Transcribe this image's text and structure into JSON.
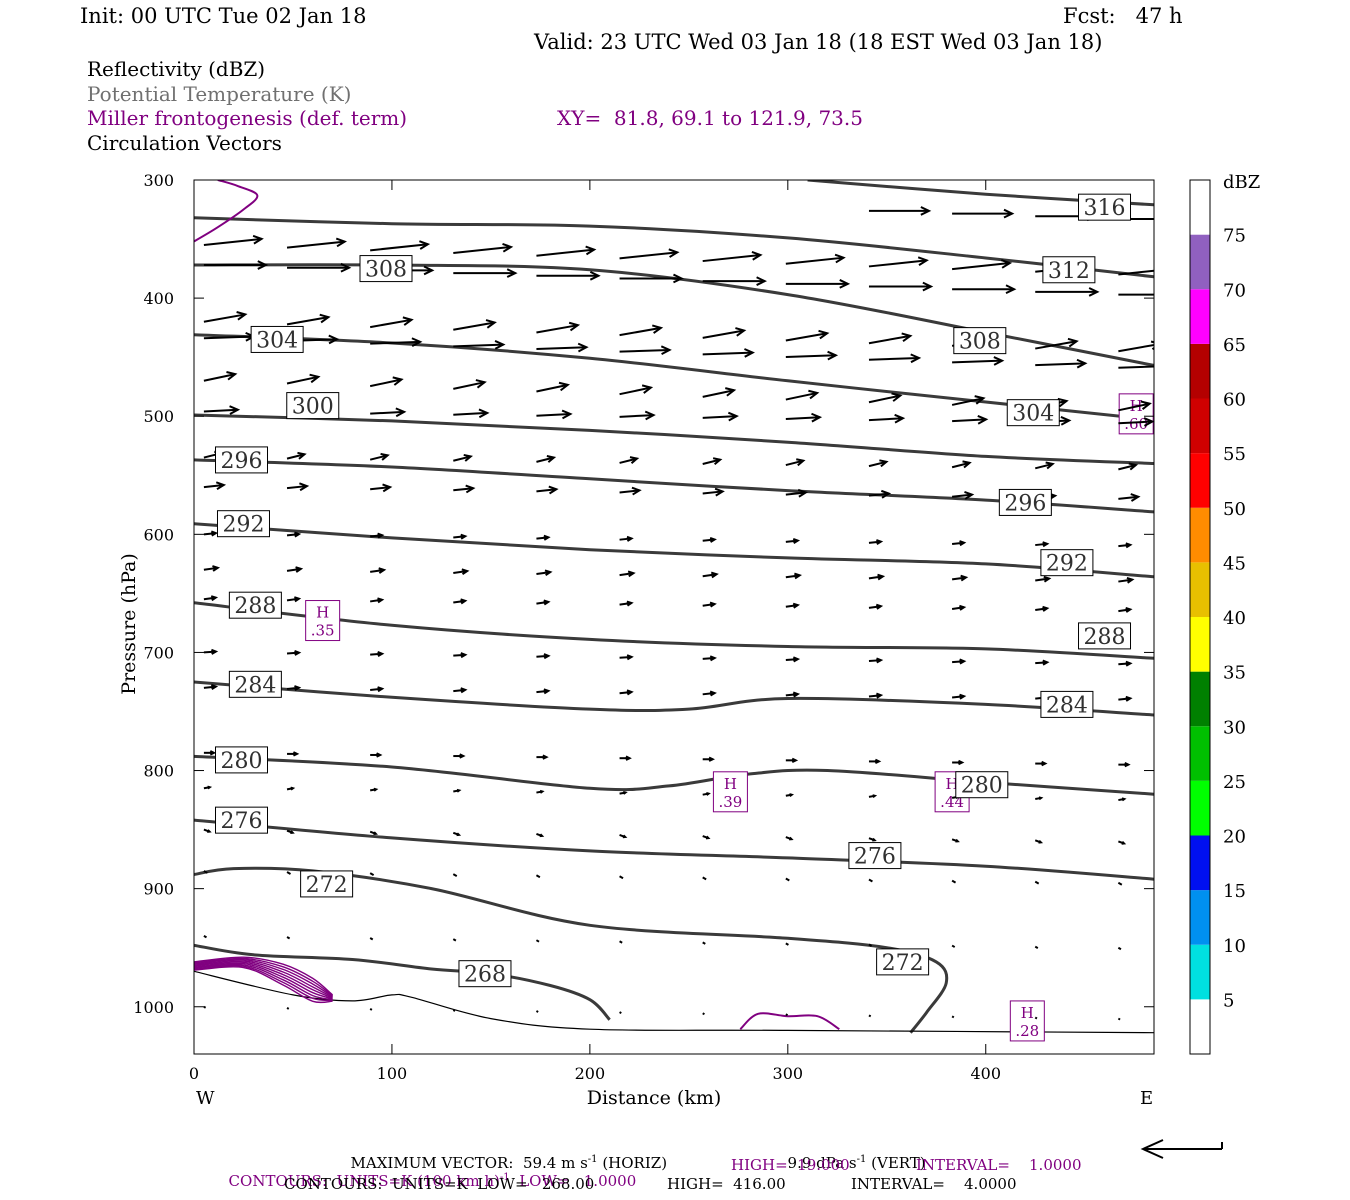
{
  "header": {
    "init": "Init: 00 UTC Tue 02 Jan 18",
    "fcst": "Fcst:   47 h",
    "valid": "Valid: 23 UTC Wed 03 Jan 18 (18 EST Wed 03 Jan 18)",
    "fields": [
      {
        "label": "Reflectivity (dBZ)",
        "color": "#000000"
      },
      {
        "label": "Potential Temperature (K)",
        "color": "#707070"
      },
      {
        "label": "Miller frontogenesis (def. term)",
        "color": "#800080"
      },
      {
        "label": "Circulation Vectors",
        "color": "#000000"
      }
    ],
    "xy": "XY=  81.8, 69.1 to 121.9, 73.5"
  },
  "chart_data": {
    "type": "cross-section",
    "xlabel": "Distance (km)",
    "ylabel": "Pressure (hPa)",
    "xlim": [
      0,
      485
    ],
    "ylim": [
      300,
      1040
    ],
    "x_ticks": [
      0,
      100,
      200,
      300,
      400
    ],
    "y_ticks": [
      300,
      400,
      500,
      600,
      700,
      800,
      900,
      1000
    ],
    "x_end_labels": {
      "left": "W",
      "right": "E"
    },
    "isentropes": [
      {
        "theta": 316,
        "points": [
          [
            310,
            300
          ],
          [
            400,
            312
          ],
          [
            485,
            321
          ]
        ],
        "labels": [
          [
            460,
            323
          ]
        ]
      },
      {
        "theta": 312,
        "points": [
          [
            0,
            332
          ],
          [
            100,
            337
          ],
          [
            200,
            339
          ],
          [
            300,
            349
          ],
          [
            400,
            366
          ],
          [
            485,
            382
          ]
        ],
        "labels": [
          [
            442,
            376
          ]
        ]
      },
      {
        "theta": 308,
        "points": [
          [
            0,
            372
          ],
          [
            100,
            372
          ],
          [
            200,
            376
          ],
          [
            300,
            397
          ],
          [
            400,
            429
          ],
          [
            485,
            457
          ]
        ],
        "labels": [
          [
            97,
            375
          ],
          [
            397,
            436
          ]
        ]
      },
      {
        "theta": 304,
        "points": [
          [
            0,
            431
          ],
          [
            100,
            438
          ],
          [
            200,
            451
          ],
          [
            300,
            470
          ],
          [
            400,
            488
          ],
          [
            485,
            503
          ]
        ],
        "labels": [
          [
            42,
            435
          ],
          [
            424,
            497
          ]
        ]
      },
      {
        "theta": 300,
        "points": [
          [
            0,
            499
          ],
          [
            100,
            504
          ],
          [
            200,
            512
          ],
          [
            300,
            522
          ],
          [
            400,
            534
          ],
          [
            485,
            540
          ]
        ],
        "labels": [
          [
            60,
            491
          ]
        ]
      },
      {
        "theta": 296,
        "points": [
          [
            0,
            537
          ],
          [
            100,
            543
          ],
          [
            200,
            553
          ],
          [
            300,
            563
          ],
          [
            400,
            571
          ],
          [
            485,
            581
          ]
        ],
        "labels": [
          [
            24,
            537
          ],
          [
            420,
            573
          ]
        ]
      },
      {
        "theta": 292,
        "points": [
          [
            0,
            591
          ],
          [
            100,
            603
          ],
          [
            200,
            613
          ],
          [
            300,
            620
          ],
          [
            400,
            625
          ],
          [
            485,
            636
          ]
        ],
        "labels": [
          [
            25,
            591
          ],
          [
            441,
            624
          ]
        ]
      },
      {
        "theta": 288,
        "points": [
          [
            0,
            658
          ],
          [
            100,
            677
          ],
          [
            200,
            689
          ],
          [
            300,
            695
          ],
          [
            400,
            697
          ],
          [
            485,
            705
          ]
        ],
        "labels": [
          [
            31,
            660
          ],
          [
            460,
            686
          ]
        ]
      },
      {
        "theta": 284,
        "points": [
          [
            0,
            725
          ],
          [
            100,
            738
          ],
          [
            200,
            748
          ],
          [
            250,
            748
          ],
          [
            300,
            739
          ],
          [
            400,
            744
          ],
          [
            485,
            753
          ]
        ],
        "labels": [
          [
            31,
            727
          ],
          [
            441,
            744
          ]
        ]
      },
      {
        "theta": 280,
        "points": [
          [
            0,
            788
          ],
          [
            100,
            797
          ],
          [
            200,
            815
          ],
          [
            240,
            813
          ],
          [
            280,
            803
          ],
          [
            320,
            800
          ],
          [
            400,
            810
          ],
          [
            485,
            820
          ]
        ],
        "labels": [
          [
            24,
            791
          ],
          [
            398,
            812
          ]
        ]
      },
      {
        "theta": 276,
        "points": [
          [
            0,
            842
          ],
          [
            100,
            857
          ],
          [
            200,
            868
          ],
          [
            300,
            874
          ],
          [
            400,
            881
          ],
          [
            485,
            892
          ]
        ],
        "labels": [
          [
            24,
            842
          ],
          [
            344,
            872
          ]
        ]
      },
      {
        "theta": 272,
        "points": [
          [
            0,
            888
          ],
          [
            20,
            883
          ],
          [
            60,
            885
          ],
          [
            120,
            900
          ],
          [
            200,
            931
          ],
          [
            300,
            942
          ],
          [
            350,
            950
          ],
          [
            375,
            962
          ],
          [
            380,
            980
          ],
          [
            370,
            1005
          ],
          [
            362,
            1022
          ]
        ],
        "labels": [
          [
            67,
            896
          ],
          [
            358,
            962
          ]
        ]
      },
      {
        "theta": 268,
        "points": [
          [
            0,
            948
          ],
          [
            30,
            956
          ],
          [
            80,
            960
          ],
          [
            120,
            968
          ],
          [
            150,
            972
          ],
          [
            180,
            982
          ],
          [
            200,
            994
          ],
          [
            210,
            1011
          ]
        ],
        "labels": [
          [
            147,
            972
          ]
        ]
      }
    ],
    "frontogenesis_maxima": [
      {
        "label": "H",
        "value": ".35",
        "x": 65,
        "p": 673
      },
      {
        "label": "H",
        "value": ".39",
        "x": 271,
        "p": 818
      },
      {
        "label": "H",
        "value": ".44",
        "x": 383,
        "p": 818
      },
      {
        "label": "H",
        "value": ".28",
        "x": 421,
        "p": 1012
      },
      {
        "label": "H",
        "value": ".60",
        "x": 476,
        "p": 498
      }
    ],
    "terrain_hpa": [
      [
        0,
        970
      ],
      [
        50,
        990
      ],
      [
        80,
        995
      ],
      [
        100,
        990
      ],
      [
        110,
        992
      ],
      [
        150,
        1010
      ],
      [
        200,
        1019
      ],
      [
        300,
        1020
      ],
      [
        485,
        1022
      ]
    ],
    "colorbar": {
      "unit": "dBZ",
      "levels": [
        5,
        10,
        15,
        20,
        25,
        30,
        35,
        40,
        45,
        50,
        55,
        60,
        65,
        70,
        75
      ],
      "colors": [
        "#ffffff",
        "#00e0e0",
        "#0090f0",
        "#0010f0",
        "#00ff00",
        "#00c000",
        "#008000",
        "#ffff00",
        "#e8c000",
        "#ff8c00",
        "#ff0000",
        "#d00000",
        "#b40000",
        "#ff00ff",
        "#9060c0",
        "#ffffff"
      ]
    },
    "reflectivity": "none"
  },
  "footer": {
    "max_vector_label": "MAXIMUM VECTOR:",
    "max_vector_horiz": "59.4 m s",
    "max_vector_horiz_unit": "(HORIZ)",
    "max_vector_vert": "9.9 dPa s",
    "max_vector_vert_unit": "(VERT)",
    "contours_purple": "CONTOURS:  UNITS=K (100 km h)",
    "contours_purple_low": "LOW=   1.0000",
    "contours_purple_high": "HIGH=  19.000",
    "contours_purple_int": "INTERVAL=    1.0000",
    "contours_black": "CONTOURS:  UNITS=K  LOW=   268.00",
    "contours_black_high": "HIGH=  416.00",
    "contours_black_int": "INTERVAL=    4.0000"
  }
}
